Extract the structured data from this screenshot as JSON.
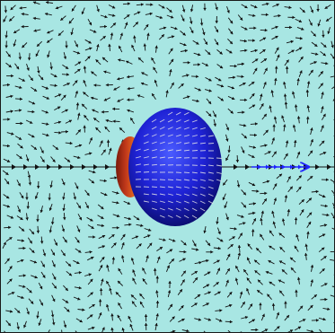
{
  "scene": {
    "background_color": "#a8e6e3",
    "border_color": "#1a1a1a",
    "field_arrow_color": "#111111",
    "surface_arrow_color": "#e6e6e6",
    "direction_arrow_color": "#1f23ff",
    "sphere_colors": {
      "front": "#1f23d6",
      "front_dark": "#0a0c6a",
      "back_red": "#c2391b",
      "back_orange": "#e36a1f",
      "band_green": "#3bbf3b",
      "band_yellow": "#e8d84a"
    }
  }
}
